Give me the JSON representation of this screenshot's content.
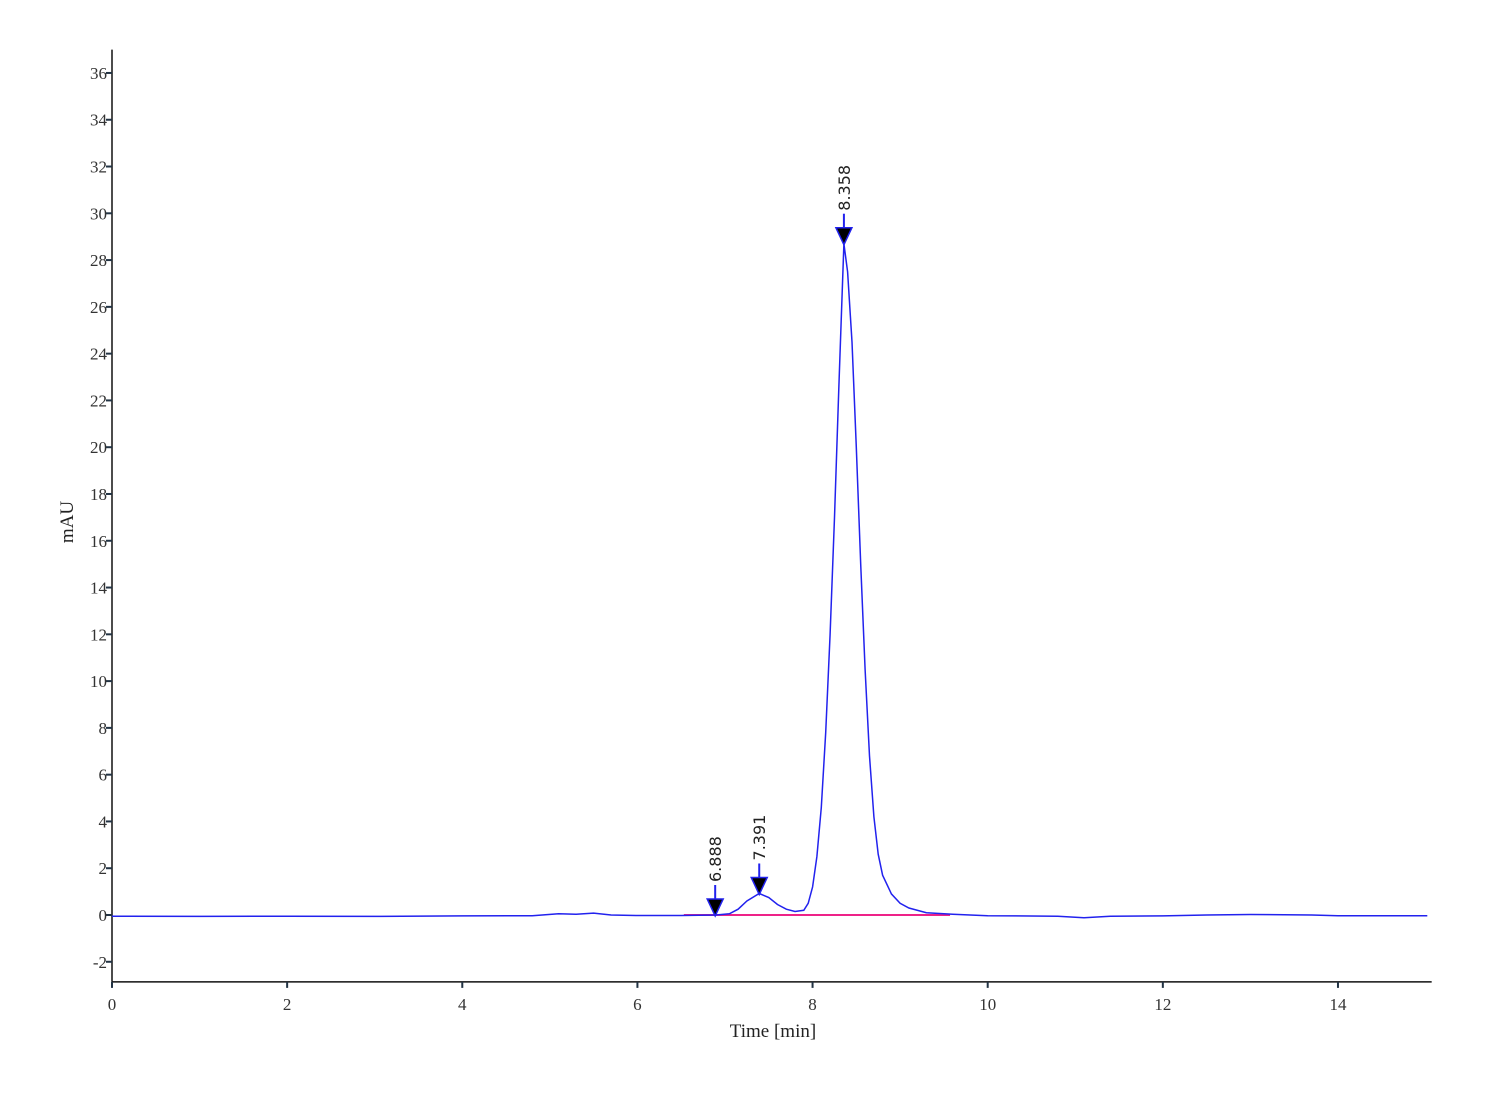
{
  "chart_data": {
    "type": "line",
    "xlabel": "Time [min]",
    "ylabel": "mAU",
    "xlim": [
      0,
      15.07
    ],
    "ylim": [
      -2.86,
      37
    ],
    "xticks": [
      0,
      2,
      4,
      6,
      8,
      10,
      12,
      14
    ],
    "yticks": [
      -2,
      0,
      2,
      4,
      6,
      8,
      10,
      12,
      14,
      16,
      18,
      20,
      22,
      24,
      26,
      28,
      30,
      32,
      34,
      36
    ],
    "grid": false,
    "colors": {
      "trace": "#2222ee",
      "baseline": "#ee2288",
      "marker": "#000000",
      "axis": "#111111"
    },
    "series": [
      {
        "points": [
          [
            0,
            -0.05
          ],
          [
            1,
            -0.06
          ],
          [
            2,
            -0.05
          ],
          [
            3,
            -0.06
          ],
          [
            4,
            -0.04
          ],
          [
            4.8,
            -0.03
          ],
          [
            5.1,
            0.05
          ],
          [
            5.3,
            0.03
          ],
          [
            5.5,
            0.08
          ],
          [
            5.7,
            0.0
          ],
          [
            6.0,
            -0.02
          ],
          [
            6.5,
            -0.02
          ],
          [
            6.9,
            0.0
          ],
          [
            7.05,
            0.05
          ],
          [
            7.15,
            0.25
          ],
          [
            7.25,
            0.6
          ],
          [
            7.391,
            0.92
          ],
          [
            7.5,
            0.75
          ],
          [
            7.6,
            0.45
          ],
          [
            7.7,
            0.25
          ],
          [
            7.8,
            0.15
          ],
          [
            7.9,
            0.2
          ],
          [
            7.95,
            0.5
          ],
          [
            8.0,
            1.2
          ],
          [
            8.05,
            2.5
          ],
          [
            8.1,
            4.6
          ],
          [
            8.15,
            7.8
          ],
          [
            8.2,
            12.0
          ],
          [
            8.25,
            17.0
          ],
          [
            8.3,
            22.5
          ],
          [
            8.358,
            28.7
          ],
          [
            8.4,
            27.5
          ],
          [
            8.45,
            24.5
          ],
          [
            8.5,
            20.0
          ],
          [
            8.55,
            15.0
          ],
          [
            8.6,
            10.5
          ],
          [
            8.65,
            6.8
          ],
          [
            8.7,
            4.2
          ],
          [
            8.75,
            2.6
          ],
          [
            8.8,
            1.7
          ],
          [
            8.9,
            0.9
          ],
          [
            9.0,
            0.5
          ],
          [
            9.1,
            0.3
          ],
          [
            9.3,
            0.1
          ],
          [
            9.6,
            0.03
          ],
          [
            10,
            -0.03
          ],
          [
            10.8,
            -0.05
          ],
          [
            11.1,
            -0.12
          ],
          [
            11.4,
            -0.05
          ],
          [
            12,
            -0.04
          ],
          [
            12.5,
            0.0
          ],
          [
            13,
            0.02
          ],
          [
            13.7,
            0.0
          ],
          [
            14,
            -0.03
          ],
          [
            15.02,
            -0.03
          ]
        ]
      }
    ],
    "integration_baseline": [
      [
        6.53,
        0.0
      ],
      [
        9.57,
        0.0
      ]
    ],
    "peaks": [
      {
        "label": "6.888",
        "time": 6.888,
        "height": 0.0
      },
      {
        "label": "7.391",
        "time": 7.391,
        "height": 0.92
      },
      {
        "label": "8.358",
        "time": 8.358,
        "height": 28.7
      }
    ]
  }
}
